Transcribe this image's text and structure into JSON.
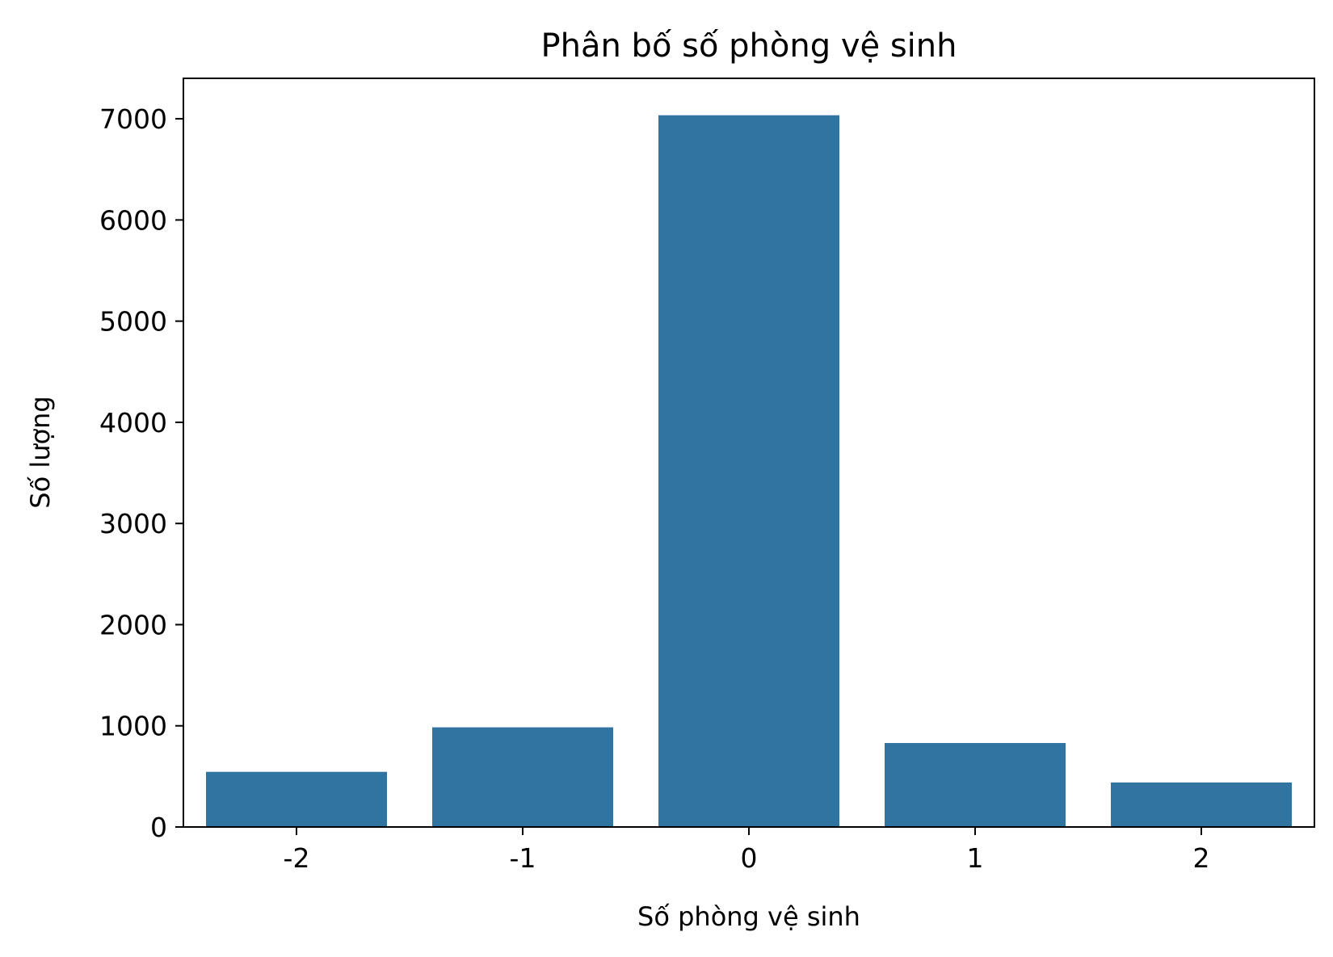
{
  "chart_data": {
    "type": "bar",
    "title": "Phân bố số phòng vệ sinh",
    "xlabel": "Số phòng vệ sinh",
    "ylabel": "Số lượng",
    "categories": [
      "-2",
      "-1",
      "0",
      "1",
      "2"
    ],
    "values": [
      545,
      985,
      7035,
      830,
      440
    ],
    "ylim": [
      0,
      7400
    ],
    "yticks": [
      0,
      1000,
      2000,
      3000,
      4000,
      5000,
      6000,
      7000
    ],
    "grid": false,
    "legend": "none",
    "bar_color": "#3274a1"
  }
}
